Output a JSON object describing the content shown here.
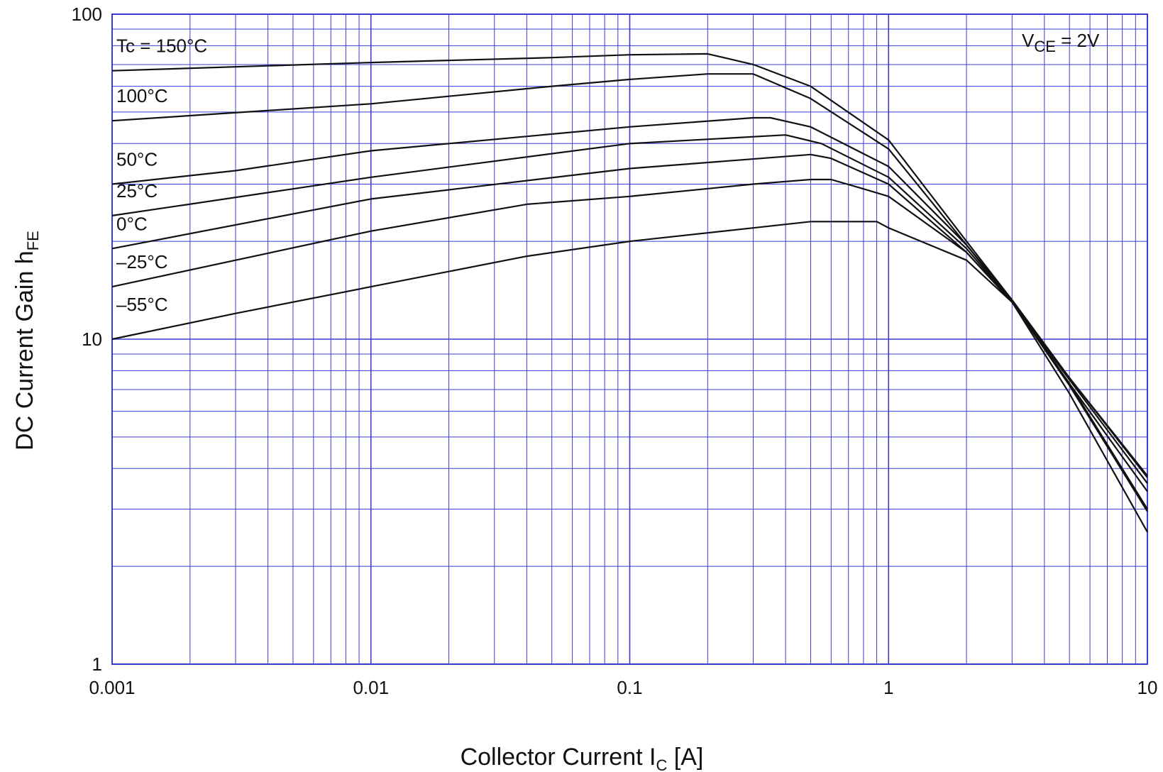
{
  "chart_data": {
    "type": "line",
    "x_scale": "log",
    "y_scale": "log",
    "xlim": [
      0.001,
      10
    ],
    "ylim": [
      1,
      100
    ],
    "xlabel": {
      "main": "Collector Current  I",
      "sub": "C",
      "unit": "  [A]"
    },
    "ylabel": {
      "main": "DC Current Gain  h",
      "sub": "FE"
    },
    "annotation": {
      "main": "V",
      "sub": "CE",
      "rest": " = 2V"
    },
    "x_tick_labels": [
      {
        "value": 0.001,
        "label": "0.001"
      },
      {
        "value": 0.01,
        "label": "0.01"
      },
      {
        "value": 0.1,
        "label": "0.1"
      },
      {
        "value": 1,
        "label": "1"
      },
      {
        "value": 10,
        "label": "10"
      }
    ],
    "y_tick_labels": [
      {
        "value": 1,
        "label": "1"
      },
      {
        "value": 10,
        "label": "10"
      },
      {
        "value": 100,
        "label": "100"
      }
    ],
    "grid": true,
    "colors": {
      "grid": "#3b3bd4",
      "curve": "#111111",
      "background": "#ffffff"
    },
    "series": [
      {
        "name": "Tc = 150°C",
        "points": [
          [
            0.001,
            67
          ],
          [
            0.01,
            71
          ],
          [
            0.05,
            73.5
          ],
          [
            0.1,
            75
          ],
          [
            0.2,
            75.5
          ],
          [
            0.3,
            70
          ],
          [
            0.5,
            60
          ],
          [
            1,
            41
          ],
          [
            2,
            20
          ],
          [
            3,
            13.2
          ],
          [
            5,
            7.6
          ],
          [
            10,
            3.8
          ]
        ]
      },
      {
        "name": "100°C",
        "points": [
          [
            0.001,
            47
          ],
          [
            0.01,
            53
          ],
          [
            0.05,
            60
          ],
          [
            0.1,
            63
          ],
          [
            0.2,
            65.5
          ],
          [
            0.3,
            65.5
          ],
          [
            0.5,
            55
          ],
          [
            1,
            38.5
          ],
          [
            2,
            19.5
          ],
          [
            3,
            13.2
          ],
          [
            5,
            7.6
          ],
          [
            10,
            3.75
          ]
        ]
      },
      {
        "name": "50°C",
        "points": [
          [
            0.001,
            30
          ],
          [
            0.003,
            33
          ],
          [
            0.01,
            38
          ],
          [
            0.1,
            45
          ],
          [
            0.3,
            48
          ],
          [
            0.35,
            48
          ],
          [
            0.5,
            45
          ],
          [
            1,
            34
          ],
          [
            2,
            19.5
          ],
          [
            3,
            13
          ],
          [
            5,
            7.5
          ],
          [
            10,
            3.6
          ]
        ]
      },
      {
        "name": "25°C",
        "points": [
          [
            0.001,
            24
          ],
          [
            0.005,
            29
          ],
          [
            0.01,
            31.5
          ],
          [
            0.1,
            40
          ],
          [
            0.4,
            42.5
          ],
          [
            0.55,
            40
          ],
          [
            1,
            31.5
          ],
          [
            2,
            19
          ],
          [
            3,
            13
          ],
          [
            5,
            7.3
          ],
          [
            10,
            3.4
          ]
        ]
      },
      {
        "name": "0°C",
        "points": [
          [
            0.001,
            19
          ],
          [
            0.01,
            27
          ],
          [
            0.1,
            33.5
          ],
          [
            0.5,
            37
          ],
          [
            0.6,
            36
          ],
          [
            1,
            30
          ],
          [
            2,
            18.5
          ],
          [
            3,
            13
          ],
          [
            5,
            7.3
          ],
          [
            10,
            3.0
          ]
        ]
      },
      {
        "name": "–25°C",
        "points": [
          [
            0.001,
            14.5
          ],
          [
            0.003,
            17.5
          ],
          [
            0.01,
            21.5
          ],
          [
            0.04,
            26
          ],
          [
            0.1,
            27.5
          ],
          [
            0.3,
            30
          ],
          [
            0.5,
            31
          ],
          [
            0.6,
            31
          ],
          [
            0.8,
            29
          ],
          [
            1,
            27.5
          ],
          [
            2,
            18.5
          ],
          [
            3,
            13
          ],
          [
            5,
            7.2
          ],
          [
            10,
            2.95
          ]
        ]
      },
      {
        "name": "–55°C",
        "points": [
          [
            0.001,
            10
          ],
          [
            0.003,
            12
          ],
          [
            0.01,
            14.5
          ],
          [
            0.04,
            18
          ],
          [
            0.1,
            20
          ],
          [
            0.3,
            22
          ],
          [
            0.5,
            23
          ],
          [
            0.9,
            23
          ],
          [
            1,
            22
          ],
          [
            2,
            17.5
          ],
          [
            3,
            13
          ],
          [
            5,
            6.8
          ],
          [
            10,
            2.55
          ]
        ]
      }
    ],
    "series_labels": [
      "Tc = 150°C",
      "100°C",
      "50°C",
      "25°C",
      "0°C",
      "–25°C",
      "–55°C"
    ]
  }
}
